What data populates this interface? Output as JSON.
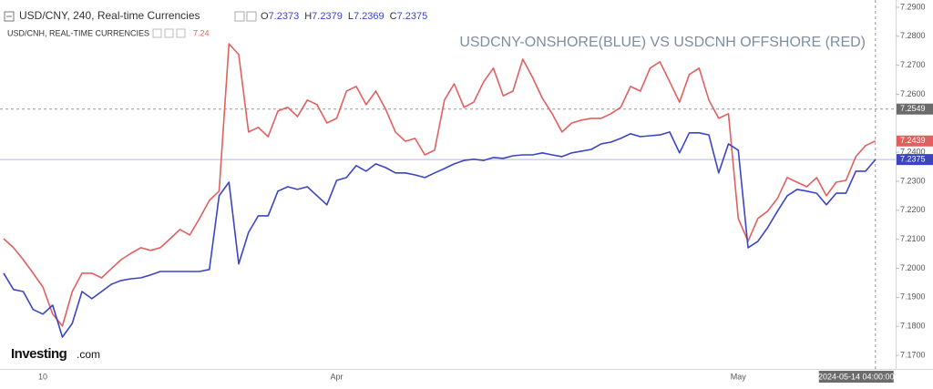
{
  "chart_data": {
    "type": "line",
    "annotation": "USDCNY-ONSHORE(BLUE) VS USDCNH OFFSHORE (RED)",
    "logo": {
      "brand": "Investing",
      "suffix": ".com"
    },
    "ohlc": [
      {
        "key": "O",
        "value": "7.2373"
      },
      {
        "key": "H",
        "value": "7.2379"
      },
      {
        "key": "L",
        "value": "7.2369"
      },
      {
        "key": "C",
        "value": "7.2375"
      }
    ],
    "secondary_price": "7.24",
    "crosshair_y": 7.2549,
    "crosshair_x_label": "2024-05-14 04:00:00",
    "grid": false,
    "categories": [
      null,
      null,
      null,
      null,
      "10",
      null,
      null,
      null,
      null,
      null,
      null,
      null,
      null,
      null,
      null,
      null,
      null,
      null,
      null,
      null,
      null,
      null,
      null,
      null,
      null,
      null,
      null,
      null,
      null,
      null,
      null,
      null,
      null,
      null,
      "Apr",
      null,
      null,
      null,
      null,
      null,
      null,
      null,
      null,
      null,
      null,
      null,
      null,
      null,
      null,
      null,
      null,
      null,
      null,
      null,
      null,
      null,
      null,
      null,
      null,
      null,
      null,
      null,
      null,
      null,
      null,
      null,
      null,
      null,
      null,
      null,
      null,
      null,
      null,
      null,
      null,
      "May",
      null,
      null,
      null,
      null,
      null,
      null,
      null,
      null,
      null,
      null,
      null,
      null,
      null,
      null
    ],
    "series": [
      {
        "name": "USD/CNY, 240, Real-time Currencies",
        "color": "#3b45c4",
        "values": [
          7.1983,
          7.1927,
          7.192,
          7.1858,
          7.1842,
          7.1873,
          7.1763,
          7.181,
          7.192,
          7.1895,
          7.192,
          7.1945,
          7.1958,
          7.1964,
          7.1967,
          7.1977,
          7.1989,
          7.1989,
          7.1989,
          7.1989,
          7.1989,
          7.1996,
          7.225,
          7.2297,
          7.2015,
          7.2124,
          7.2181,
          7.2181,
          7.2266,
          7.2281,
          7.2272,
          7.2281,
          7.225,
          7.2219,
          7.2303,
          7.2313,
          7.2354,
          7.2335,
          7.236,
          7.2347,
          7.2329,
          7.2329,
          7.2322,
          7.2313,
          7.2329,
          7.2344,
          7.236,
          7.2372,
          7.2376,
          7.2372,
          7.2382,
          7.2379,
          7.2388,
          7.2391,
          7.2391,
          7.2398,
          7.2391,
          7.2385,
          7.2398,
          7.2404,
          7.241,
          7.2429,
          7.2435,
          7.2448,
          7.2464,
          7.2454,
          7.2457,
          7.246,
          7.247,
          7.2398,
          7.2467,
          7.2467,
          7.246,
          7.2329,
          7.2429,
          7.2407,
          7.2071,
          7.2093,
          7.214,
          7.2197,
          7.225,
          7.2272,
          7.2266,
          7.2259,
          7.2219,
          7.2259,
          7.2259,
          7.2335,
          7.2335,
          7.2375
        ]
      },
      {
        "name": "USD/CNH, REAL-TIME CURRENCIES",
        "color": "#e06060",
        "values": [
          7.2102,
          7.2071,
          7.203,
          7.1983,
          7.1936,
          7.1842,
          7.1801,
          7.192,
          7.1983,
          7.1983,
          7.1967,
          7.1999,
          7.203,
          7.2052,
          7.2071,
          7.2062,
          7.2071,
          7.2102,
          7.2134,
          7.2115,
          7.2172,
          7.2234,
          7.2266,
          7.2774,
          7.2737,
          7.247,
          7.2486,
          7.2454,
          7.2542,
          7.2555,
          7.2523,
          7.258,
          7.2564,
          7.2501,
          7.2517,
          7.2611,
          7.2627,
          7.2564,
          7.2611,
          7.2548,
          7.247,
          7.2438,
          7.2448,
          7.2391,
          7.2407,
          7.258,
          7.2636,
          7.2555,
          7.2573,
          7.2643,
          7.269,
          7.2595,
          7.2611,
          7.2721,
          7.2658,
          7.2586,
          7.2533,
          7.247,
          7.2501,
          7.2511,
          7.2517,
          7.2517,
          7.2533,
          7.2555,
          7.2627,
          7.2611,
          7.269,
          7.2712,
          7.2643,
          7.2573,
          7.2668,
          7.269,
          7.258,
          7.2517,
          7.2533,
          7.2172,
          7.2093,
          7.2172,
          7.2197,
          7.2241,
          7.2313,
          7.2297,
          7.2281,
          7.2313,
          7.225,
          7.2297,
          7.2303,
          7.2385,
          7.2423,
          7.2439
        ]
      }
    ],
    "ylim": [
      7.1653,
      7.2925
    ],
    "yticks": [
      {
        "value": 7.29,
        "label": "7.2900"
      },
      {
        "value": 7.28,
        "label": "7.2800"
      },
      {
        "value": 7.27,
        "label": "7.2700"
      },
      {
        "value": 7.26,
        "label": "7.2600"
      },
      {
        "value": 7.24,
        "label": "7.2400"
      },
      {
        "value": 7.23,
        "label": "7.2300"
      },
      {
        "value": 7.22,
        "label": "7.2200"
      },
      {
        "value": 7.21,
        "label": "7.2100"
      },
      {
        "value": 7.2,
        "label": "7.2000"
      },
      {
        "value": 7.19,
        "label": "7.1900"
      },
      {
        "value": 7.18,
        "label": "7.1800"
      },
      {
        "value": 7.17,
        "label": "7.1700"
      }
    ]
  }
}
